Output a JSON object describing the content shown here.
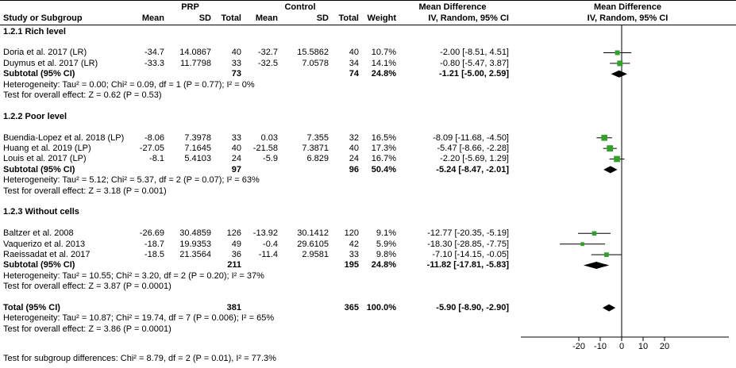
{
  "header": {
    "group1": "PRP",
    "group2": "Control",
    "col_study": "Study or Subgroup",
    "col_mean": "Mean",
    "col_sd": "SD",
    "col_total": "Total",
    "col_weight": "Weight",
    "md_title": "Mean Difference",
    "md_sub": "IV, Random, 95% CI"
  },
  "colors": {
    "marker_green": "#33A02C",
    "diamond_black": "#000000",
    "line_black": "#000000"
  },
  "chart_data": {
    "type": "forest",
    "effect_measure": "Mean Difference, IV, Random, 95% CI",
    "axis": {
      "ticks": [
        -20,
        -10,
        0,
        10,
        20
      ]
    },
    "groups": [
      {
        "label": "1.2.1 Rich level",
        "studies": [
          {
            "name": "Doria et al. 2017 (LR)",
            "mean1": "-34.7",
            "sd1": "14.0867",
            "n1": "40",
            "mean2": "-32.7",
            "sd2": "15.5862",
            "n2": "40",
            "weight": "10.7%",
            "weight_val": 10.7,
            "ci": "-2.00 [-8.51, 4.51]",
            "est": -2.0,
            "lo": -8.51,
            "hi": 4.51
          },
          {
            "name": "Duymus et al. 2017 (LR)",
            "mean1": "-33.3",
            "sd1": "11.7798",
            "n1": "33",
            "mean2": "-32.5",
            "sd2": "7.0578",
            "n2": "34",
            "weight": "14.1%",
            "weight_val": 14.1,
            "ci": "-0.80 [-5.47, 3.87]",
            "est": -0.8,
            "lo": -5.47,
            "hi": 3.87
          }
        ],
        "subtotal": {
          "label": "Subtotal (95% CI)",
          "n1": "73",
          "n2": "74",
          "weight": "24.8%",
          "ci": "-1.21 [-5.00, 2.59]",
          "est": -1.21,
          "lo": -5.0,
          "hi": 2.59
        },
        "heterogeneity": "Heterogeneity: Tau² = 0.00; Chi² = 0.09, df = 1 (P = 0.77); I² = 0%",
        "overall_effect": "Test for overall effect: Z = 0.62 (P = 0.53)"
      },
      {
        "label": "1.2.2 Poor level",
        "studies": [
          {
            "name": "Buendia-Lopez et al. 2018 (LP)",
            "mean1": "-8.06",
            "sd1": "7.3978",
            "n1": "33",
            "mean2": "0.03",
            "sd2": "7.355",
            "n2": "32",
            "weight": "16.5%",
            "weight_val": 16.5,
            "ci": "-8.09 [-11.68, -4.50]",
            "est": -8.09,
            "lo": -11.68,
            "hi": -4.5
          },
          {
            "name": "Huang et al. 2019 (LP)",
            "mean1": "-27.05",
            "sd1": "7.1645",
            "n1": "40",
            "mean2": "-21.58",
            "sd2": "7.3871",
            "n2": "40",
            "weight": "17.3%",
            "weight_val": 17.3,
            "ci": "-5.47 [-8.66, -2.28]",
            "est": -5.47,
            "lo": -8.66,
            "hi": -2.28
          },
          {
            "name": "Louis et al. 2017 (LP)",
            "mean1": "-8.1",
            "sd1": "5.4103",
            "n1": "24",
            "mean2": "-5.9",
            "sd2": "6.829",
            "n2": "24",
            "weight": "16.7%",
            "weight_val": 16.7,
            "ci": "-2.20 [-5.69, 1.29]",
            "est": -2.2,
            "lo": -5.69,
            "hi": 1.29
          }
        ],
        "subtotal": {
          "label": "Subtotal (95% CI)",
          "n1": "97",
          "n2": "96",
          "weight": "50.4%",
          "ci": "-5.24 [-8.47, -2.01]",
          "est": -5.24,
          "lo": -8.47,
          "hi": -2.01
        },
        "heterogeneity": "Heterogeneity: Tau² = 5.12; Chi² = 5.37, df = 2 (P = 0.07); I² = 63%",
        "overall_effect": "Test for overall effect: Z = 3.18 (P = 0.001)"
      },
      {
        "label": "1.2.3 Without cells",
        "studies": [
          {
            "name": "Baltzer et al. 2008",
            "mean1": "-26.69",
            "sd1": "30.4859",
            "n1": "126",
            "mean2": "-13.92",
            "sd2": "30.1412",
            "n2": "120",
            "weight": "9.1%",
            "weight_val": 9.1,
            "ci": "-12.77 [-20.35, -5.19]",
            "est": -12.77,
            "lo": -20.35,
            "hi": -5.19
          },
          {
            "name": "Vaquerizo et al. 2013",
            "mean1": "-18.7",
            "sd1": "19.9353",
            "n1": "49",
            "mean2": "-0.4",
            "sd2": "29.6105",
            "n2": "42",
            "weight": "5.9%",
            "weight_val": 5.9,
            "ci": "-18.30 [-28.85, -7.75]",
            "est": -18.3,
            "lo": -28.85,
            "hi": -7.75
          },
          {
            "name": "Raeissadat et al. 2017",
            "mean1": "-18.5",
            "sd1": "21.3564",
            "n1": "36",
            "mean2": "-11.4",
            "sd2": "2.9581",
            "n2": "33",
            "weight": "9.8%",
            "weight_val": 9.8,
            "ci": "-7.10 [-14.15, -0.05]",
            "est": -7.1,
            "lo": -14.15,
            "hi": -0.05
          }
        ],
        "subtotal": {
          "label": "Subtotal (95% CI)",
          "n1": "211",
          "n2": "195",
          "weight": "24.8%",
          "ci": "-11.82 [-17.81, -5.83]",
          "est": -11.82,
          "lo": -17.81,
          "hi": -5.83
        },
        "heterogeneity": "Heterogeneity: Tau² = 10.55; Chi² = 3.20, df = 2 (P = 0.20); I² = 37%",
        "overall_effect": "Test for overall effect: Z = 3.87 (P = 0.0001)"
      }
    ],
    "total": {
      "label": "Total (95% CI)",
      "n1": "381",
      "n2": "365",
      "weight": "100.0%",
      "ci": "-5.90 [-8.90, -2.90]",
      "est": -5.9,
      "lo": -8.9,
      "hi": -2.9
    },
    "total_heterogeneity": "Heterogeneity: Tau² = 10.87; Chi² = 19.74, df = 7 (P = 0.006); I² = 65%",
    "total_overall_effect": "Test for overall effect: Z = 3.86 (P = 0.0001)",
    "subgroup_differences": "Test for subgroup differences: Chi² = 8.79, df = 2 (P = 0.01), I² = 77.3%"
  }
}
